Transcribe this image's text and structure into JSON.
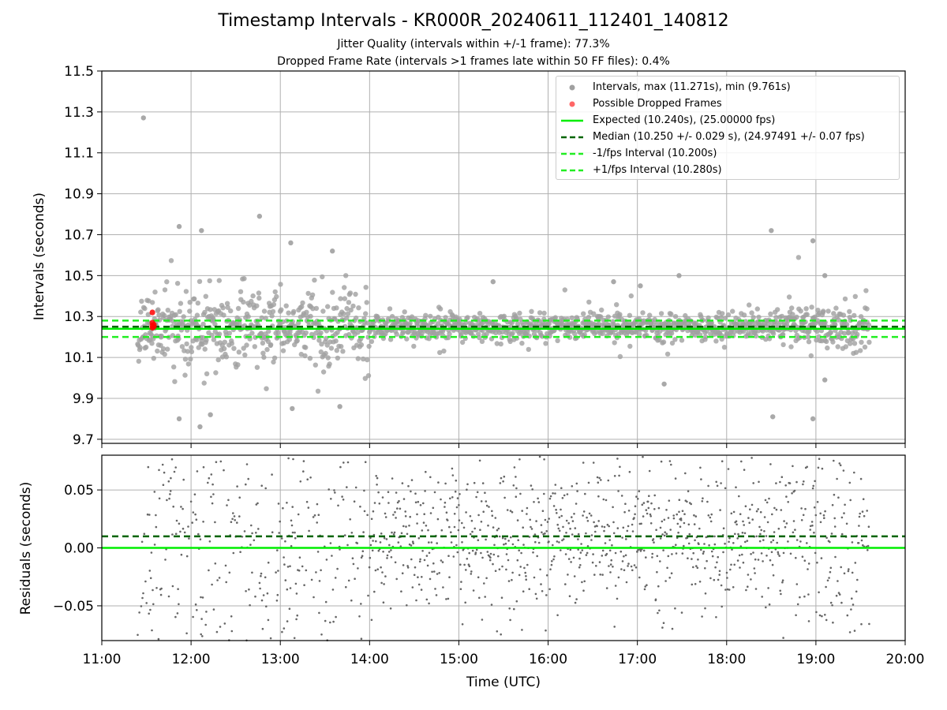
{
  "figure": {
    "title": "Timestamp Intervals - KR000R_20240611_112401_140812",
    "subtitle_1": "Jitter Quality (intervals within +/-1 frame): 77.3%",
    "subtitle_2": "Dropped Frame Rate (intervals >1 frames late within 50 FF files): 0.4%"
  },
  "colors": {
    "intervals": "#808080",
    "dropped": "#ff0000",
    "expected": "#00ee00",
    "median": "#006400",
    "fps_bounds": "#22ee22",
    "residuals": "#666666"
  },
  "chart_data": [
    {
      "type": "scatter",
      "panel": "top",
      "ylabel": "Intervals (seconds)",
      "xlabel": "",
      "ylim": [
        9.68,
        11.5
      ],
      "xlim": [
        "11:00",
        "20:00"
      ],
      "grid": true,
      "legend_position": "top-right",
      "yticks": [
        "9.7",
        "9.9",
        "10.1",
        "10.3",
        "10.5",
        "10.7",
        "10.9",
        "11.1",
        "11.3",
        "11.5"
      ],
      "ytick_values": [
        9.7,
        9.9,
        10.1,
        10.3,
        10.5,
        10.7,
        10.9,
        11.1,
        11.3,
        11.5
      ],
      "legend": [
        {
          "label": "Intervals, max (11.271s), min (9.761s)",
          "marker": "dot",
          "color": "#a0a0a0"
        },
        {
          "label": "Possible Dropped Frames",
          "marker": "dot",
          "color": "#ff6666"
        },
        {
          "label": "Expected (10.240s), (25.00000 fps)",
          "marker": "line",
          "color": "#00ee00"
        },
        {
          "label": "Median (10.250 +/- 0.029 s), (24.97491 +/- 0.07 fps)",
          "marker": "dash",
          "color": "#006400"
        },
        {
          "label": "-1/fps Interval (10.200s)",
          "marker": "dash",
          "color": "#22ee22"
        },
        {
          "label": "+1/fps Interval (10.280s)",
          "marker": "dash",
          "color": "#22ee22"
        }
      ],
      "series": [
        {
          "name": "Expected (10.240s), (25.00000 fps)",
          "kind": "hline",
          "y": 10.24
        },
        {
          "name": "Median (10.250 +/- 0.029 s), (24.97491 +/- 0.07 fps)",
          "kind": "hline",
          "y": 10.25
        },
        {
          "name": "-1/fps Interval (10.200s)",
          "kind": "hline",
          "y": 10.2
        },
        {
          "name": "+1/fps Interval (10.280s)",
          "kind": "hline",
          "y": 10.28
        },
        {
          "name": "Intervals, max (11.271s), min (9.761s)",
          "kind": "scatter",
          "time_range": [
            "11:24",
            "19:36"
          ],
          "max": 11.271,
          "min": 9.761,
          "median": 10.25,
          "std": 0.029,
          "notable_points": [
            {
              "x": "11:28",
              "y": 11.271
            },
            {
              "x": "11:52",
              "y": 10.74
            },
            {
              "x": "12:07",
              "y": 10.72
            },
            {
              "x": "12:46",
              "y": 10.79
            },
            {
              "x": "13:07",
              "y": 10.66
            },
            {
              "x": "13:35",
              "y": 10.62
            },
            {
              "x": "18:30",
              "y": 10.72
            },
            {
              "x": "18:58",
              "y": 10.67
            },
            {
              "x": "12:06",
              "y": 9.761
            },
            {
              "x": "11:52",
              "y": 9.8
            },
            {
              "x": "12:13",
              "y": 9.82
            },
            {
              "x": "13:08",
              "y": 9.85
            },
            {
              "x": "13:40",
              "y": 9.86
            },
            {
              "x": "18:31",
              "y": 9.81
            },
            {
              "x": "18:58",
              "y": 9.8
            },
            {
              "x": "15:23",
              "y": 10.47
            },
            {
              "x": "16:44",
              "y": 10.47
            },
            {
              "x": "17:02",
              "y": 10.45
            },
            {
              "x": "17:28",
              "y": 10.5
            },
            {
              "x": "17:18",
              "y": 9.97
            },
            {
              "x": "19:06",
              "y": 10.5
            },
            {
              "x": "19:06",
              "y": 9.99
            }
          ]
        },
        {
          "name": "Possible Dropped Frames",
          "kind": "scatter",
          "points": [
            {
              "x": "11:34",
              "y": 10.32
            },
            {
              "x": "11:34",
              "y": 10.27
            },
            {
              "x": "11:34",
              "y": 10.255
            },
            {
              "x": "11:34",
              "y": 10.245
            },
            {
              "x": "11:35",
              "y": 10.26
            },
            {
              "x": "11:35",
              "y": 10.25
            }
          ]
        }
      ]
    },
    {
      "type": "scatter",
      "panel": "bottom",
      "ylabel": "Residuals (seconds)",
      "xlabel": "Time (UTC)",
      "ylim": [
        -0.08,
        0.08
      ],
      "xlim": [
        "11:00",
        "20:00"
      ],
      "grid": true,
      "yticks": [
        "−0.05",
        "0.00",
        "0.05"
      ],
      "ytick_values": [
        -0.05,
        0.0,
        0.05
      ],
      "xticks": [
        "11:00",
        "12:00",
        "13:00",
        "14:00",
        "15:00",
        "16:00",
        "17:00",
        "18:00",
        "19:00",
        "20:00"
      ],
      "series": [
        {
          "name": "Expected",
          "kind": "hline",
          "y": 0.0
        },
        {
          "name": "Median",
          "kind": "hline",
          "y": 0.01
        },
        {
          "name": "Residuals",
          "kind": "scatter",
          "time_range": [
            "11:24",
            "19:36"
          ],
          "median": 0.01,
          "std": 0.029
        }
      ]
    }
  ]
}
